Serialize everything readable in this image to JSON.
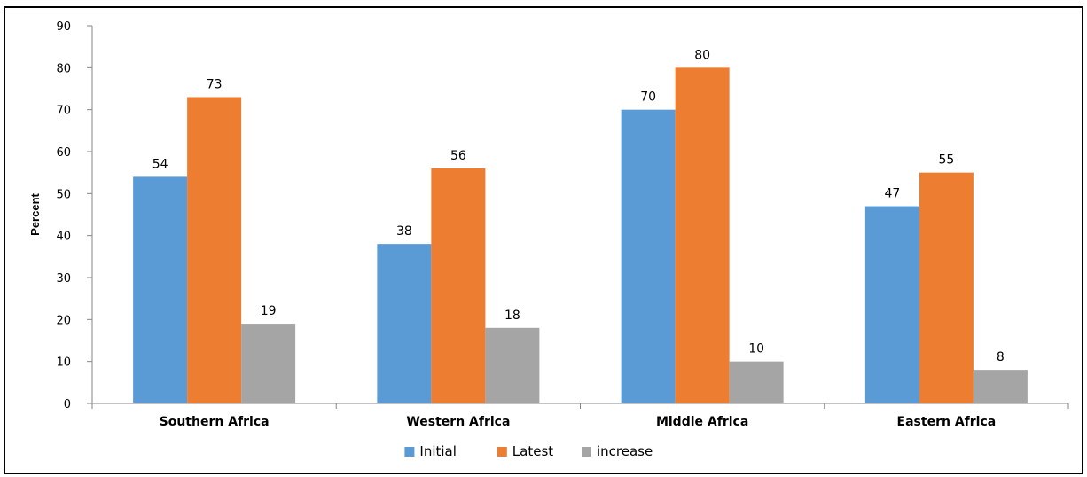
{
  "chart_data": {
    "type": "bar",
    "title": "",
    "xlabel": "",
    "ylabel": "Percent",
    "ylim": [
      0,
      90
    ],
    "ytick_step": 10,
    "grid": false,
    "legend_position": "bottom",
    "categories": [
      "Southern Africa",
      "Western Africa",
      "Middle Africa",
      "Eastern Africa"
    ],
    "series": [
      {
        "name": "Initial",
        "color": "#5B9BD5",
        "values": [
          54,
          38,
          70,
          47
        ]
      },
      {
        "name": "Latest",
        "color": "#ED7D31",
        "values": [
          73,
          56,
          80,
          55
        ]
      },
      {
        "name": "increase",
        "color": "#A5A5A5",
        "values": [
          19,
          18,
          10,
          8
        ]
      }
    ]
  }
}
